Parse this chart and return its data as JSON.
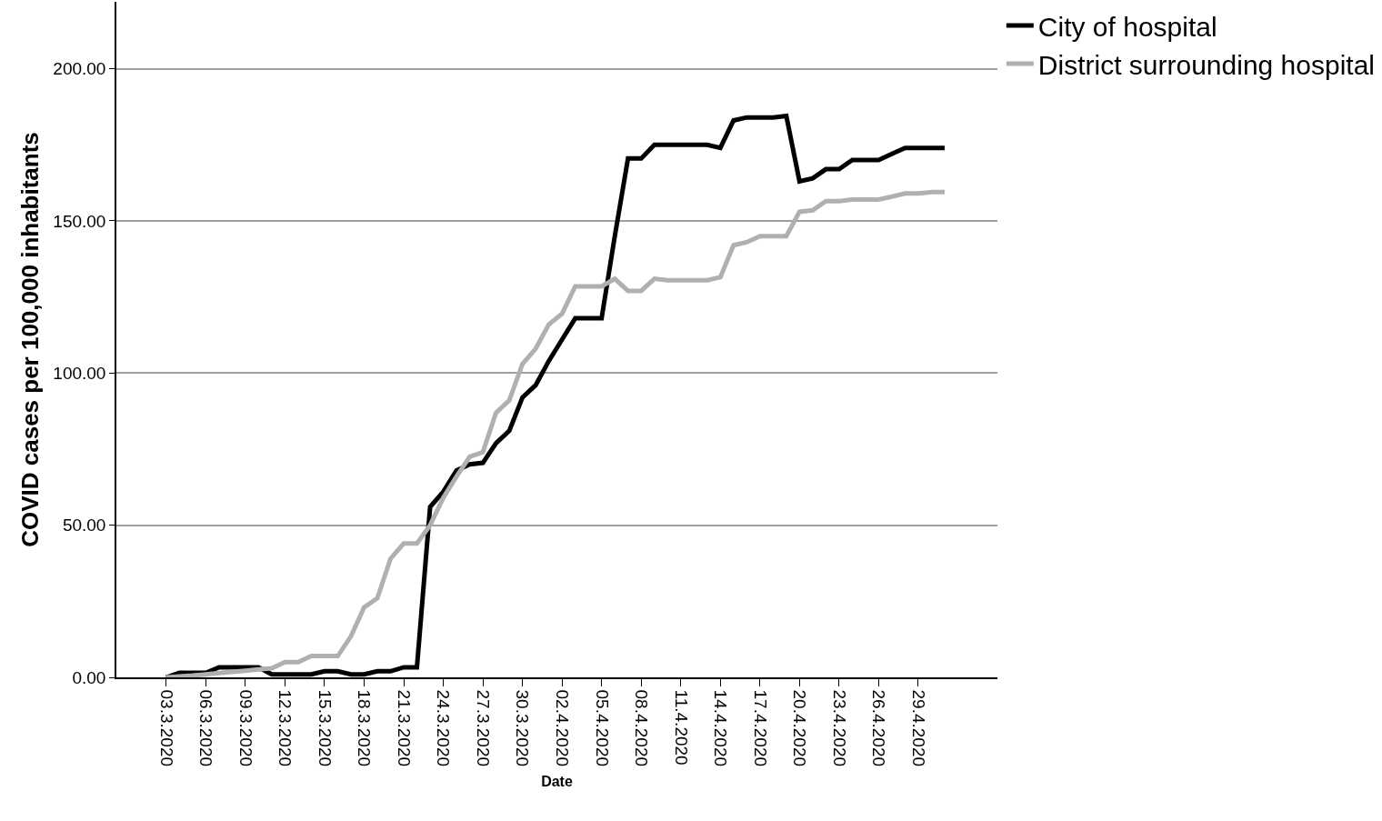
{
  "chart_data": {
    "type": "line",
    "xlabel": "Date",
    "ylabel": "COVID cases per 100,000 inhabitants",
    "categories": [
      "03.3.2020",
      null,
      null,
      "06.3.2020",
      null,
      null,
      "09.3.2020",
      null,
      null,
      "12.3.2020",
      null,
      null,
      "15.3.2020",
      null,
      null,
      "18.3.2020",
      null,
      null,
      "21.3.2020",
      null,
      null,
      "24.3.2020",
      null,
      null,
      "27.3.2020",
      null,
      null,
      "30.3.2020",
      null,
      null,
      "02.4.2020",
      null,
      null,
      "05.4.2020",
      null,
      null,
      "08.4.2020",
      null,
      null,
      "11.4.2020",
      null,
      null,
      "14.4.2020",
      null,
      null,
      "17.4.2020",
      null,
      null,
      "20.4.2020",
      null,
      null,
      "23.4.2020",
      null,
      null,
      "26.4.2020",
      null,
      null,
      "29.4.2020",
      null,
      null
    ],
    "series": [
      {
        "name": "City of hospital",
        "color": "#000000",
        "values": [
          0,
          1.5,
          1.5,
          1.5,
          3.3,
          3.3,
          3.3,
          3.3,
          1,
          1,
          1,
          1,
          2,
          2,
          1,
          1,
          2,
          2,
          3.3,
          3.3,
          56,
          61,
          68,
          70,
          70.5,
          77,
          81,
          92,
          96,
          104,
          111,
          118,
          118,
          118,
          145,
          170.5,
          170.5,
          175,
          175,
          175,
          175,
          175,
          174,
          183,
          184,
          184,
          184,
          184.5,
          163,
          164,
          167,
          167,
          170,
          170,
          170,
          172,
          174,
          174,
          174,
          174
        ]
      },
      {
        "name": "District surrounding hospital",
        "color": "#b0b0b0",
        "values": [
          0,
          0.3,
          0.6,
          1,
          1.4,
          1.8,
          2.2,
          2.6,
          3,
          5,
          5,
          7,
          7,
          7,
          13.5,
          23,
          26,
          39,
          44,
          44,
          50,
          59,
          66,
          72.5,
          74,
          87,
          91,
          103,
          108,
          116,
          119.5,
          128.5,
          128.5,
          128.5,
          131,
          127,
          127,
          131,
          130.5,
          130.5,
          130.5,
          130.5,
          131.5,
          142,
          143,
          145,
          145,
          145,
          153,
          153.5,
          156.5,
          156.5,
          157,
          157,
          157,
          158,
          159,
          159,
          159.5,
          159.5
        ]
      }
    ],
    "ylim": [
      0,
      222
    ],
    "yticks": [
      {
        "value": 0,
        "label": "0.00"
      },
      {
        "value": 50,
        "label": "50.00"
      },
      {
        "value": 100,
        "label": "100.00"
      },
      {
        "value": 150,
        "label": "150.00"
      },
      {
        "value": 200,
        "label": "200.00"
      }
    ],
    "grid": "y",
    "legend": "top right",
    "marker": "none",
    "line_style": "solid"
  }
}
